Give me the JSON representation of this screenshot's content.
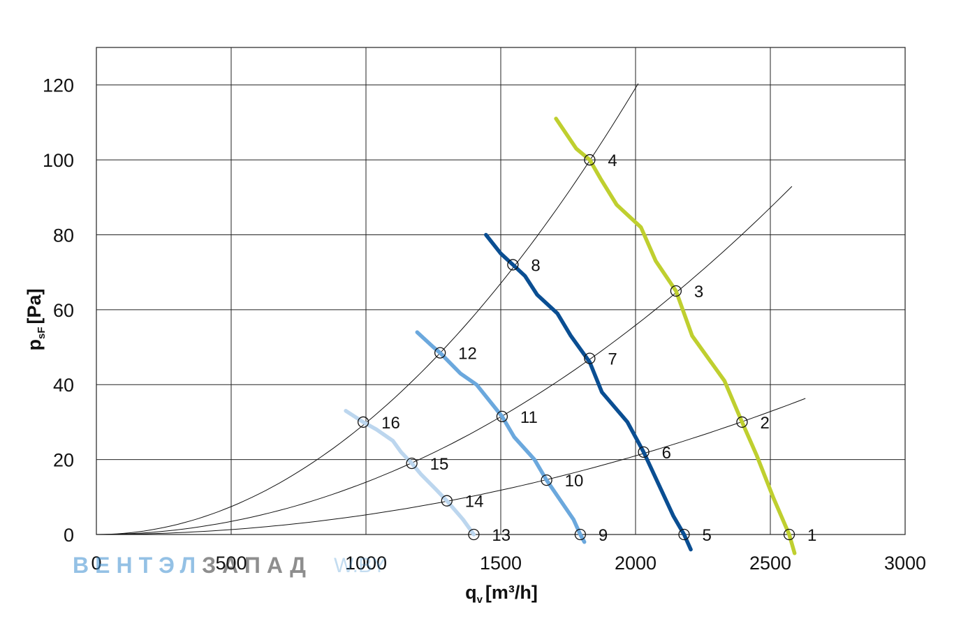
{
  "chart_data": {
    "type": "line",
    "xlabel": "q",
    "xlabel_sub": "v",
    "xlabel_unit": "[m³/h]",
    "ylabel": "p",
    "ylabel_sub": "sF",
    "ylabel_unit": "[Pa]",
    "xlim": [
      0,
      3000
    ],
    "ylim": [
      0,
      130
    ],
    "xticks": [
      0,
      500,
      1000,
      1500,
      2000,
      2500,
      3000
    ],
    "yticks": [
      0,
      20,
      40,
      60,
      80,
      100,
      120
    ],
    "xgrid": [
      0,
      500,
      1000,
      1500,
      2000,
      2500,
      3000
    ],
    "ygrid": [
      0,
      20,
      40,
      60,
      80,
      100,
      120
    ],
    "grid": true,
    "series": [
      {
        "color": "#bfcf2f",
        "points": [
          [
            1705,
            111
          ],
          [
            1780,
            103
          ],
          [
            1830,
            100
          ],
          [
            1870,
            95
          ],
          [
            1930,
            88
          ],
          [
            2020,
            82
          ],
          [
            2075,
            73
          ],
          [
            2150,
            65
          ],
          [
            2210,
            53
          ],
          [
            2330,
            41
          ],
          [
            2395,
            30
          ],
          [
            2450,
            21
          ],
          [
            2510,
            10
          ],
          [
            2570,
            0
          ],
          [
            2590,
            -5
          ]
        ]
      },
      {
        "color": "#0a4e92",
        "points": [
          [
            1445,
            80
          ],
          [
            1500,
            75
          ],
          [
            1545,
            72
          ],
          [
            1590,
            69
          ],
          [
            1635,
            64
          ],
          [
            1710,
            59
          ],
          [
            1760,
            53
          ],
          [
            1830,
            46
          ],
          [
            1875,
            38
          ],
          [
            1970,
            30
          ],
          [
            2030,
            22
          ],
          [
            2140,
            5
          ],
          [
            2180,
            0
          ],
          [
            2205,
            -4
          ]
        ]
      },
      {
        "color": "#6ba8dd",
        "points": [
          [
            1190,
            54
          ],
          [
            1250,
            50
          ],
          [
            1275,
            48.5
          ],
          [
            1350,
            43
          ],
          [
            1410,
            40
          ],
          [
            1505,
            31.5
          ],
          [
            1550,
            26
          ],
          [
            1625,
            20
          ],
          [
            1670,
            14.5
          ],
          [
            1770,
            4
          ],
          [
            1795,
            0
          ],
          [
            1810,
            -2
          ]
        ]
      },
      {
        "color": "#bcd6ee",
        "points": [
          [
            925,
            33
          ],
          [
            990,
            30
          ],
          [
            1040,
            28
          ],
          [
            1100,
            25
          ],
          [
            1130,
            22
          ],
          [
            1170,
            19
          ],
          [
            1205,
            16
          ],
          [
            1260,
            12
          ],
          [
            1300,
            9
          ],
          [
            1360,
            4
          ],
          [
            1400,
            0
          ]
        ]
      }
    ],
    "system_curves": [
      {
        "k": 2.98e-05,
        "x_end": 2010
      },
      {
        "k": 1.396e-05,
        "x_end": 2580
      },
      {
        "k": 5.25e-06,
        "x_end": 2630
      }
    ],
    "points": [
      {
        "label": "1",
        "x": 2570,
        "y": 0
      },
      {
        "label": "2",
        "x": 2395,
        "y": 30
      },
      {
        "label": "3",
        "x": 2150,
        "y": 65
      },
      {
        "label": "4",
        "x": 1830,
        "y": 100
      },
      {
        "label": "5",
        "x": 2180,
        "y": 0
      },
      {
        "label": "6",
        "x": 2030,
        "y": 22
      },
      {
        "label": "7",
        "x": 1830,
        "y": 47
      },
      {
        "label": "8",
        "x": 1545,
        "y": 72
      },
      {
        "label": "9",
        "x": 1795,
        "y": 0
      },
      {
        "label": "10",
        "x": 1670,
        "y": 14.5
      },
      {
        "label": "11",
        "x": 1505,
        "y": 31.5
      },
      {
        "label": "12",
        "x": 1275,
        "y": 48.5
      },
      {
        "label": "13",
        "x": 1400,
        "y": 0
      },
      {
        "label": "14",
        "x": 1300,
        "y": 9
      },
      {
        "label": "15",
        "x": 1170,
        "y": 19
      },
      {
        "label": "16",
        "x": 990,
        "y": 30
      }
    ]
  },
  "watermark": {
    "part_a": "ВЕНТЭЛ",
    "part_b": "ЗАПАД",
    "url": "W.BY"
  }
}
